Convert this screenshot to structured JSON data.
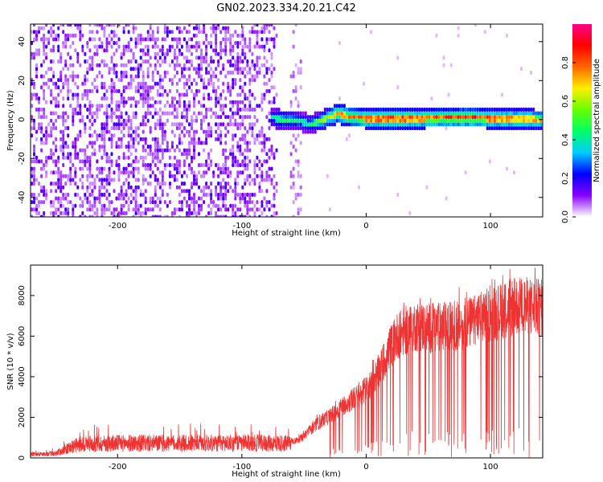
{
  "title": "GN02.2023.334.20.21.C42",
  "chart_data": [
    {
      "type": "heatmap",
      "name": "spectrogram",
      "xlabel": "Height of straight line (km)",
      "ylabel": "Frequency (Hz)",
      "xlim": [
        -270,
        142
      ],
      "ylim": [
        -50,
        49
      ],
      "xticks": [
        -200,
        -100,
        0,
        100
      ],
      "yticks": [
        -40,
        -20,
        0,
        20,
        40
      ],
      "colorbar": {
        "label": "Normalized spectral amplitude",
        "range": [
          0,
          1
        ],
        "ticks": [
          0.0,
          0.2,
          0.4,
          0.6,
          0.8
        ],
        "colormap": [
          "#ffffff",
          "#8800ff",
          "#0000ff",
          "#00ccff",
          "#00ff66",
          "#66ff00",
          "#ffee00",
          "#ff6600",
          "#ff0000",
          "#ff0088"
        ]
      },
      "regions": [
        {
          "description_key": "noise",
          "x_range": [
            -270,
            -75
          ],
          "y_range": [
            -50,
            49
          ],
          "amplitude": 0.15
        },
        {
          "description_key": "noise_strip",
          "x_range": [
            -62,
            -52
          ],
          "y_range": [
            -50,
            49
          ],
          "amplitude": 0.08
        }
      ],
      "ridge": {
        "x": [
          -78,
          -70,
          -60,
          -52,
          -45,
          -38,
          -30,
          -24,
          -18,
          -10,
          0,
          20,
          40,
          60,
          80,
          100,
          120,
          142
        ],
        "freq": [
          1,
          0,
          0,
          -1.5,
          -2,
          -1,
          1.5,
          3,
          2,
          1,
          0.5,
          0.5,
          0.5,
          0.8,
          1,
          0.5,
          0.3,
          0
        ],
        "amplitude": [
          0.4,
          0.55,
          0.5,
          0.45,
          0.5,
          0.6,
          0.75,
          0.85,
          0.9,
          0.85,
          0.9,
          0.95,
          0.9,
          0.9,
          0.95,
          0.9,
          0.85,
          0.8
        ]
      }
    },
    {
      "type": "line",
      "name": "snr",
      "xlabel": "Height of straight line (km)",
      "ylabel": "SNR (10 * v/v)",
      "xlim": [
        -270,
        142
      ],
      "ylim": [
        0,
        9500
      ],
      "xticks": [
        -200,
        -100,
        0,
        100
      ],
      "yticks": [
        0,
        2000,
        4000,
        6000,
        8000
      ],
      "color": "#ee3333",
      "envelope": {
        "x": [
          -270,
          -250,
          -240,
          -230,
          -200,
          -150,
          -100,
          -70,
          -60,
          -55,
          -50,
          -45,
          -40,
          -35,
          -30,
          -25,
          -20,
          -15,
          -10,
          -5,
          0,
          5,
          10,
          15,
          20,
          25,
          30,
          40,
          50,
          60,
          70,
          80,
          90,
          100,
          110,
          120,
          130,
          142
        ],
        "mean": [
          200,
          250,
          550,
          800,
          850,
          850,
          850,
          850,
          850,
          900,
          1100,
          1400,
          1700,
          1900,
          2100,
          2300,
          2600,
          2800,
          3000,
          3200,
          3500,
          3900,
          4400,
          5000,
          5700,
          6200,
          6400,
          6700,
          6600,
          6600,
          6700,
          6800,
          7000,
          7300,
          7500,
          7700,
          7700,
          7600
        ]
      }
    }
  ]
}
